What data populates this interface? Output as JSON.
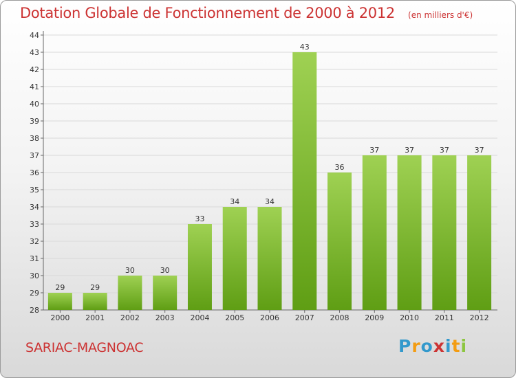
{
  "title": "Dotation Globale de Fonctionnement de 2000 à 2012",
  "unit": "(en milliers d'€)",
  "commune": "SARIAC-MAGNOAC",
  "logo": {
    "text": "Proxiti",
    "letters": [
      {
        "ch": "P",
        "color": "#3399cc"
      },
      {
        "ch": "r",
        "color": "#f39c12"
      },
      {
        "ch": "o",
        "color": "#3399cc"
      },
      {
        "ch": "x",
        "color": "#cc3333"
      },
      {
        "ch": "i",
        "color": "#3399cc"
      },
      {
        "ch": "t",
        "color": "#f39c12"
      },
      {
        "ch": "i",
        "color": "#8cc63f"
      }
    ]
  },
  "colors": {
    "bar_top": "#9fd153",
    "bar_bottom": "#5f9e14",
    "accent": "#cc3333",
    "grid": "#d9d9d9"
  },
  "chart_data": {
    "type": "bar",
    "title": "Dotation Globale de Fonctionnement de 2000 à 2012",
    "subtitle": "(en milliers d'€)",
    "categories": [
      "2000",
      "2001",
      "2002",
      "2003",
      "2004",
      "2005",
      "2006",
      "2007",
      "2008",
      "2009",
      "2010",
      "2011",
      "2012"
    ],
    "values": [
      29,
      29,
      30,
      30,
      33,
      34,
      34,
      43,
      36,
      37,
      37,
      37,
      37
    ],
    "ylim": [
      28,
      44
    ],
    "yticks": [
      28,
      29,
      30,
      31,
      32,
      33,
      34,
      35,
      36,
      37,
      38,
      39,
      40,
      41,
      42,
      43,
      44
    ],
    "grid": true,
    "xlabel": "",
    "ylabel": ""
  }
}
